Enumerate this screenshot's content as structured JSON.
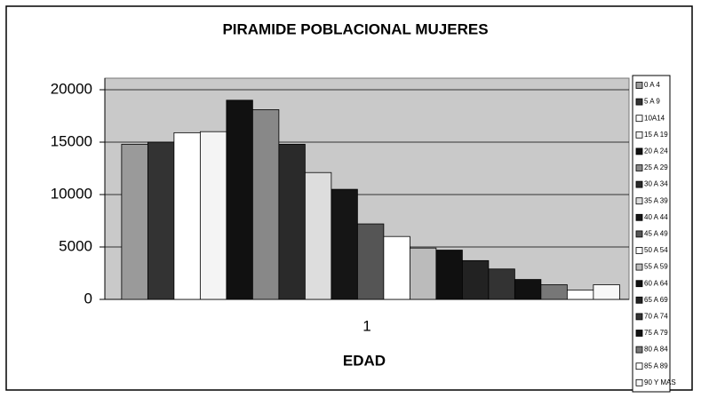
{
  "chart_data": {
    "type": "bar",
    "title": "PIRAMIDE POBLACIONAL MUJERES",
    "x_label": "EDAD",
    "categories": [
      "1"
    ],
    "series": [
      {
        "name": "0 A 4",
        "color": "#9a9a9a",
        "values": [
          14800
        ]
      },
      {
        "name": "5 A 9",
        "color": "#333333",
        "values": [
          15000
        ]
      },
      {
        "name": "10A14",
        "color": "#ffffff",
        "values": [
          15900
        ]
      },
      {
        "name": "15 A 19",
        "color": "#f4f4f4",
        "values": [
          16000
        ]
      },
      {
        "name": "20 A 24",
        "color": "#111111",
        "values": [
          19000
        ]
      },
      {
        "name": "25 A 29",
        "color": "#888888",
        "values": [
          18100
        ]
      },
      {
        "name": "30 A 34",
        "color": "#2a2a2a",
        "values": [
          14800
        ]
      },
      {
        "name": "35 A 39",
        "color": "#dddddd",
        "values": [
          12100
        ]
      },
      {
        "name": "40 A 44",
        "color": "#151515",
        "values": [
          10500
        ]
      },
      {
        "name": "45 A 49",
        "color": "#555555",
        "values": [
          7200
        ]
      },
      {
        "name": "50 A 54",
        "color": "#ffffff",
        "values": [
          6000
        ]
      },
      {
        "name": "55 A 59",
        "color": "#bbbbbb",
        "values": [
          4900
        ]
      },
      {
        "name": "60 A 64",
        "color": "#101010",
        "values": [
          4700
        ]
      },
      {
        "name": "65 A 69",
        "color": "#222222",
        "values": [
          3700
        ]
      },
      {
        "name": "70 A 74",
        "color": "#333333",
        "values": [
          2900
        ]
      },
      {
        "name": "75 A 79",
        "color": "#111111",
        "values": [
          1900
        ]
      },
      {
        "name": "80 A 84",
        "color": "#777777",
        "values": [
          1400
        ]
      },
      {
        "name": "85 A 89",
        "color": "#ffffff",
        "values": [
          900
        ]
      },
      {
        "name": "90 Y MAS",
        "color": "#f8f8f8",
        "values": [
          1400
        ]
      }
    ],
    "ylim": [
      0,
      20000
    ],
    "yticks": [
      0,
      5000,
      10000,
      15000,
      20000
    ],
    "grid": true,
    "legend": "right"
  }
}
